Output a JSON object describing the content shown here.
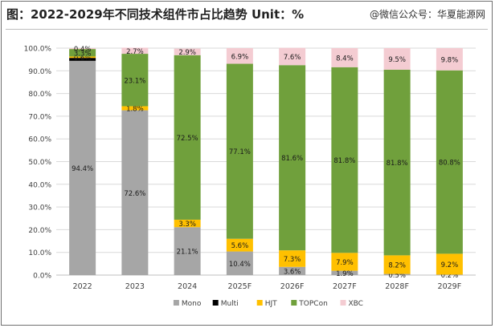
{
  "header": {
    "title": "图：2022-2029年不同技术组件市占比趋势 Unit：%",
    "watermark": "@微信公众号：华夏能源网"
  },
  "chart_data": {
    "type": "bar",
    "stacked": true,
    "categories": [
      "2022",
      "2023",
      "2024",
      "2025F",
      "2026F",
      "2027F",
      "2028F",
      "2029F"
    ],
    "ylim": [
      0,
      100
    ],
    "ytick_step": 10,
    "ytick_format": "percent_1dp",
    "grid": true,
    "legend": "bottom",
    "series": [
      {
        "name": "Mono",
        "color": "#a6a6a6",
        "values": [
          94.4,
          72.6,
          21.1,
          10.4,
          3.6,
          1.9,
          0.5,
          0.2
        ],
        "labels": [
          "94.4%",
          "72.6%",
          "21.1%",
          "10.4%",
          "3.6%",
          "1.9%",
          "0.5%",
          "0.2%"
        ]
      },
      {
        "name": "Multi",
        "color": "#000000",
        "values": [
          1.3,
          0.0,
          0.0,
          0.0,
          0.0,
          0.0,
          0.0,
          0.0
        ],
        "labels": [
          "",
          "",
          "",
          "",
          "",
          "",
          "",
          ""
        ]
      },
      {
        "name": "HJT",
        "color": "#ffc000",
        "values": [
          0.6,
          1.8,
          3.3,
          5.6,
          7.3,
          7.9,
          8.2,
          9.2
        ],
        "labels": [
          "0.6%",
          "1.8%",
          "3.3%",
          "5.6%",
          "7.3%",
          "7.9%",
          "8.2%",
          "9.2%"
        ]
      },
      {
        "name": "TOPCon",
        "color": "#70a03c",
        "values": [
          3.3,
          23.1,
          72.5,
          77.1,
          81.6,
          81.8,
          81.8,
          80.8
        ],
        "labels": [
          "3.3%",
          "23.1%",
          "72.5%",
          "77.1%",
          "81.6%",
          "81.8%",
          "81.8%",
          "80.8%"
        ]
      },
      {
        "name": "XBC",
        "color": "#f4ccd2",
        "values": [
          0.4,
          2.7,
          2.9,
          6.9,
          7.6,
          8.4,
          9.5,
          9.8
        ],
        "labels": [
          "0.4%",
          "2.7%",
          "2.9%",
          "6.9%",
          "7.6%",
          "8.4%",
          "9.5%",
          "9.8%"
        ]
      }
    ]
  }
}
